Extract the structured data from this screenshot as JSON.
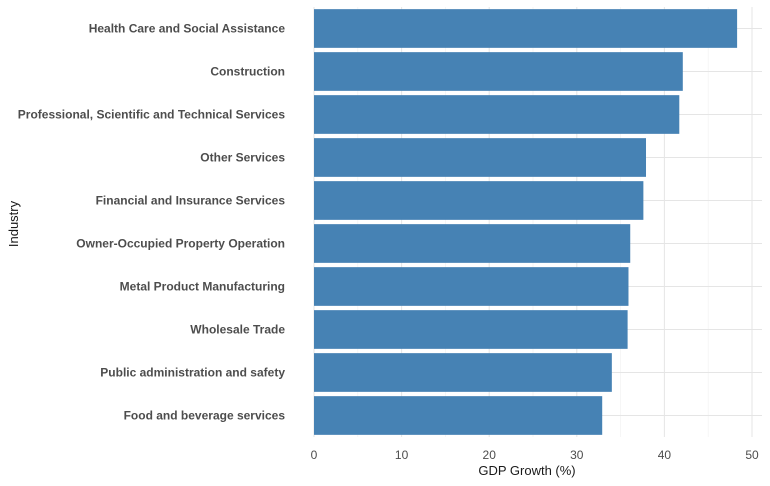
{
  "chart_data": {
    "type": "bar",
    "orientation": "horizontal",
    "title": "",
    "xlabel": "GDP Growth (%)",
    "ylabel": "Industry",
    "xlim": [
      0,
      50
    ],
    "xticks": [
      "0",
      "10",
      "20",
      "30",
      "40",
      "50"
    ],
    "grid": true,
    "bar_color": "#4682b4",
    "categories": [
      "Health Care and Social Assistance",
      "Construction",
      "Professional, Scientific and Technical Services",
      "Other Services",
      "Financial and Insurance Services",
      "Owner-Occupied Property Operation",
      "Metal Product Manufacturing",
      "Wholesale Trade",
      "Public administration and safety",
      "Food and beverage services"
    ],
    "values": [
      48.3,
      42.1,
      41.7,
      37.9,
      37.6,
      36.1,
      35.9,
      35.8,
      34.0,
      32.9
    ]
  }
}
